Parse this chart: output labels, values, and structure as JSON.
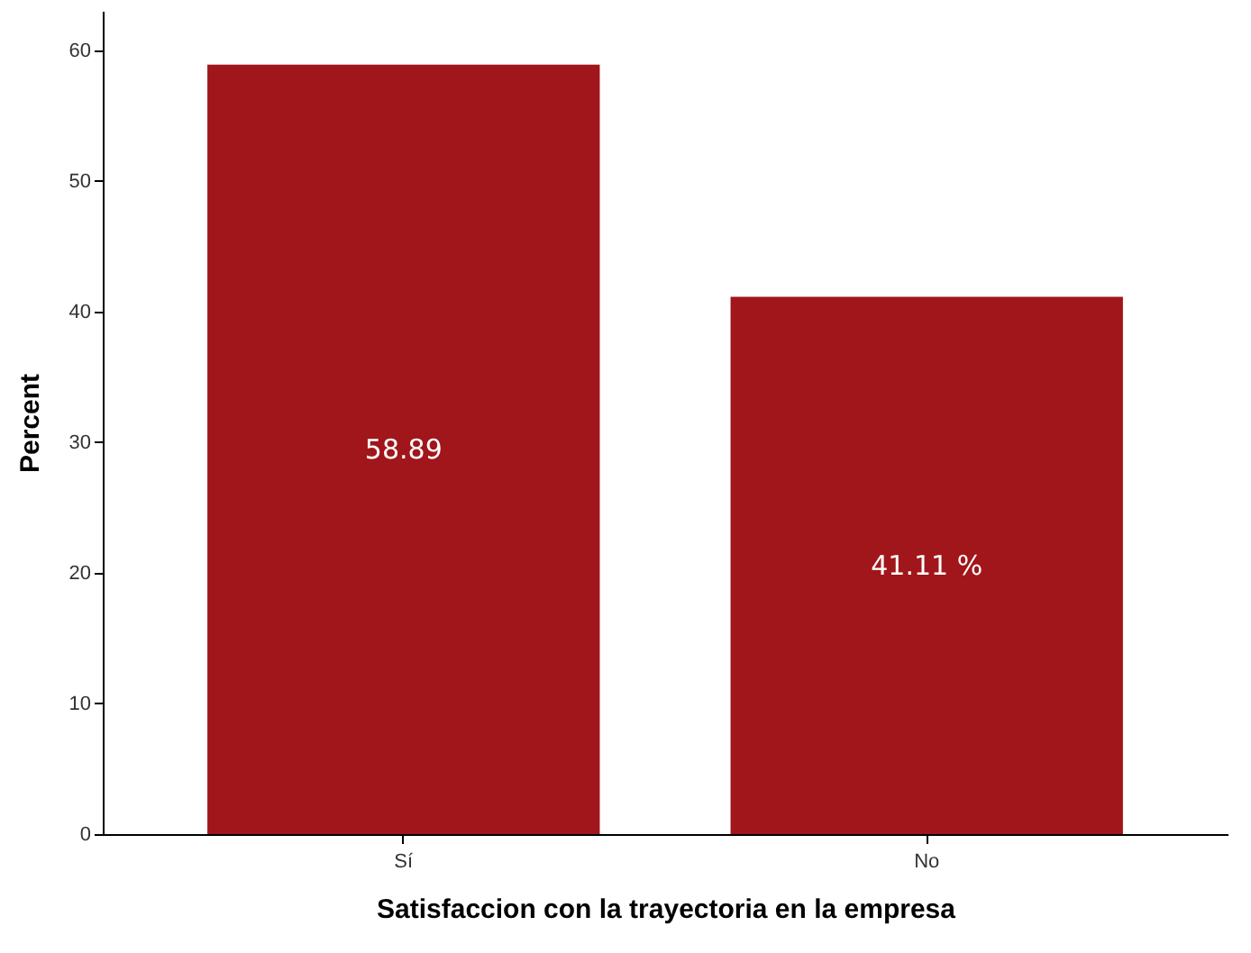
{
  "chart_data": {
    "type": "bar",
    "xlabel": "Satisfaccion con la trayectoria en la empresa",
    "ylabel": "Percent",
    "categories": [
      "Sí",
      "No"
    ],
    "values": [
      58.89,
      41.11
    ],
    "value_labels": [
      "58.89",
      "41.11 %"
    ],
    "color": "#a0161a",
    "ylim": [
      0,
      63
    ],
    "yticks": [
      0,
      10,
      20,
      30,
      40,
      50,
      60
    ],
    "grid": false
  }
}
